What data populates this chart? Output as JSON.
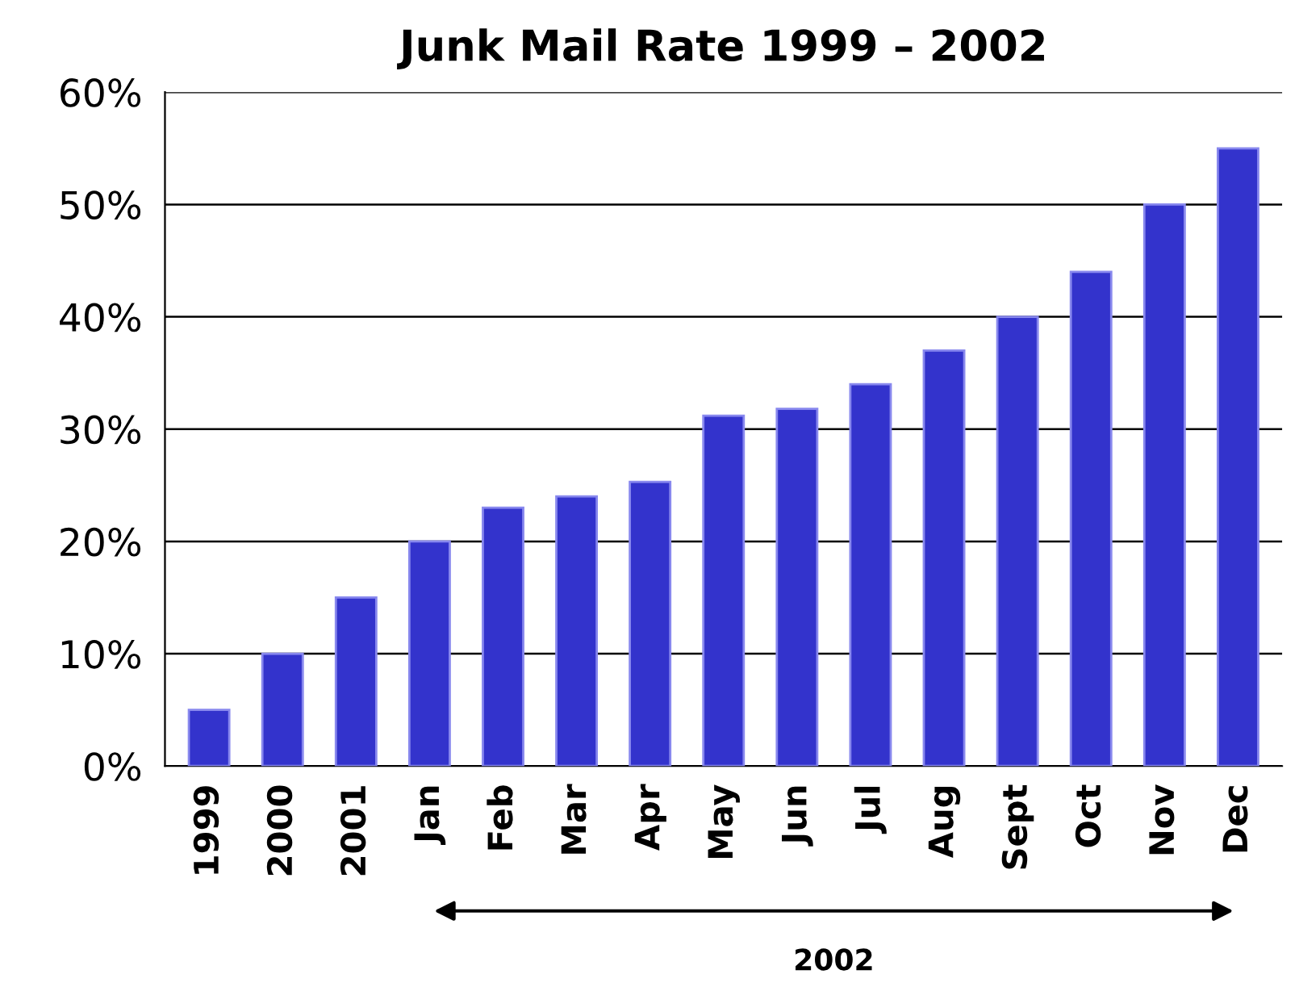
{
  "chart_data": {
    "type": "bar",
    "title": "Junk Mail Rate 1999 – 2002",
    "categories": [
      "1999",
      "2000",
      "2001",
      "Jan",
      "Feb",
      "Mar",
      "Apr",
      "May",
      "Jun",
      "Jul",
      "Aug",
      "Sept",
      "Oct",
      "Nov",
      "Dec"
    ],
    "values": [
      5,
      10,
      15,
      20,
      23,
      24,
      25.3,
      31.2,
      31.8,
      34,
      37,
      40,
      44,
      50,
      55
    ],
    "color": "#3333cc",
    "ylim": [
      0,
      60
    ],
    "yticks": [
      {
        "value": 0,
        "label": "0%"
      },
      {
        "value": 10,
        "label": "10%"
      },
      {
        "value": 20,
        "label": "20%"
      },
      {
        "value": 30,
        "label": "30%"
      },
      {
        "value": 40,
        "label": "40%"
      },
      {
        "value": 50,
        "label": "50%"
      },
      {
        "value": 60,
        "label": "60%"
      }
    ],
    "grid": "y",
    "annotations": [
      "2002"
    ]
  }
}
